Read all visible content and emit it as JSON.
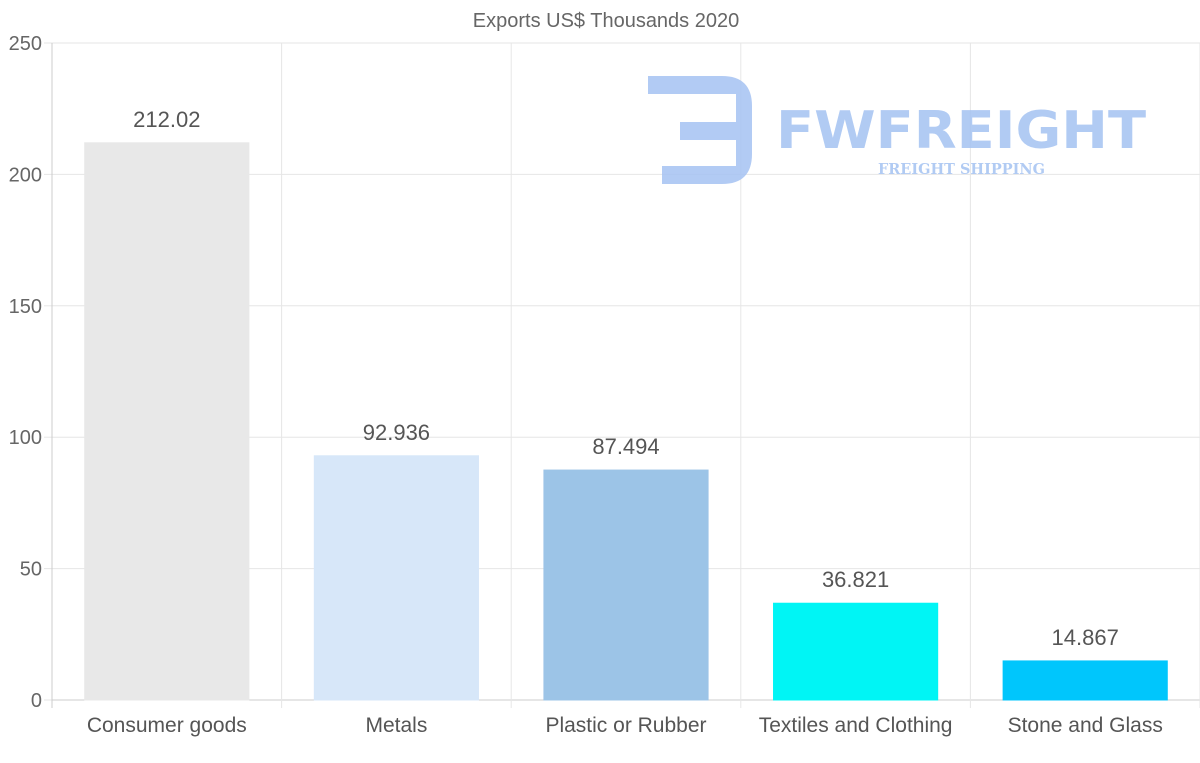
{
  "chart_data": {
    "type": "bar",
    "title": "Exports US$ Thousands 2020",
    "categories": [
      "Consumer goods",
      "Metals",
      "Plastic or Rubber",
      "Textiles and Clothing",
      "Stone and Glass"
    ],
    "values": [
      212.02,
      92.936,
      87.494,
      36.821,
      14.867
    ],
    "value_labels": [
      "212.02",
      "92.936",
      "87.494",
      "36.821",
      "14.867"
    ],
    "bar_colors": [
      "#e8e8e8",
      "#d7e7f9",
      "#9cc4e7",
      "#00f5f5",
      "#00c6fc"
    ],
    "ylim": [
      0,
      250
    ],
    "yticks": [
      0,
      50,
      100,
      150,
      200,
      250
    ],
    "xlabel": "",
    "ylabel": "",
    "grid": true
  },
  "watermark": {
    "brand": "FWFREIGHT",
    "tagline": "FREIGHT SHIPPING",
    "color": "#a4c2f2"
  },
  "colors": {
    "grid": "#e6e6e6",
    "axis": "#cccccc",
    "text": "#666666"
  }
}
